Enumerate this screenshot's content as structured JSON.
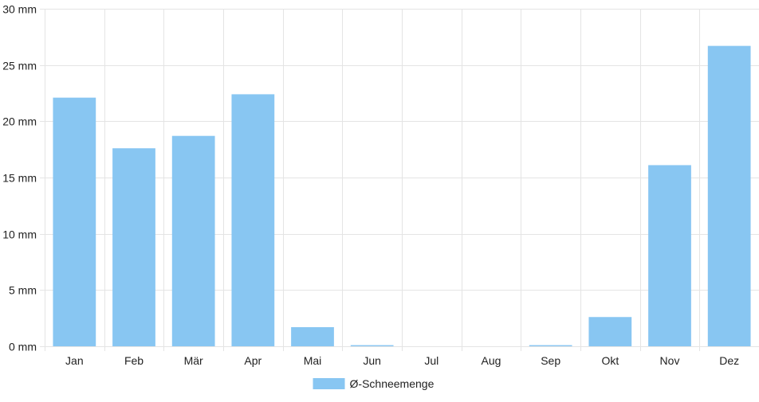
{
  "colors": {
    "bar": "#88c6f2",
    "grid": "#e4e4e4",
    "text": "#222222"
  },
  "chart_data": {
    "type": "bar",
    "title": "",
    "xlabel": "",
    "ylabel": "",
    "categories": [
      "Jan",
      "Feb",
      "Mär",
      "Apr",
      "Mai",
      "Jun",
      "Jul",
      "Aug",
      "Sep",
      "Okt",
      "Nov",
      "Dez"
    ],
    "series": [
      {
        "name": "Ø-Schneemenge",
        "values": [
          22.1,
          17.6,
          18.7,
          22.4,
          1.7,
          0.1,
          0,
          0,
          0.1,
          2.6,
          16.1,
          26.7
        ]
      }
    ],
    "ylim": [
      0,
      30
    ],
    "y_ticks": [
      0,
      5,
      10,
      15,
      20,
      25,
      30
    ],
    "y_tick_labels": [
      "0 mm",
      "5 mm",
      "10 mm",
      "15 mm",
      "20 mm",
      "25 mm",
      "30 mm"
    ],
    "unit": "mm",
    "grid": true,
    "legend_position": "bottom"
  }
}
